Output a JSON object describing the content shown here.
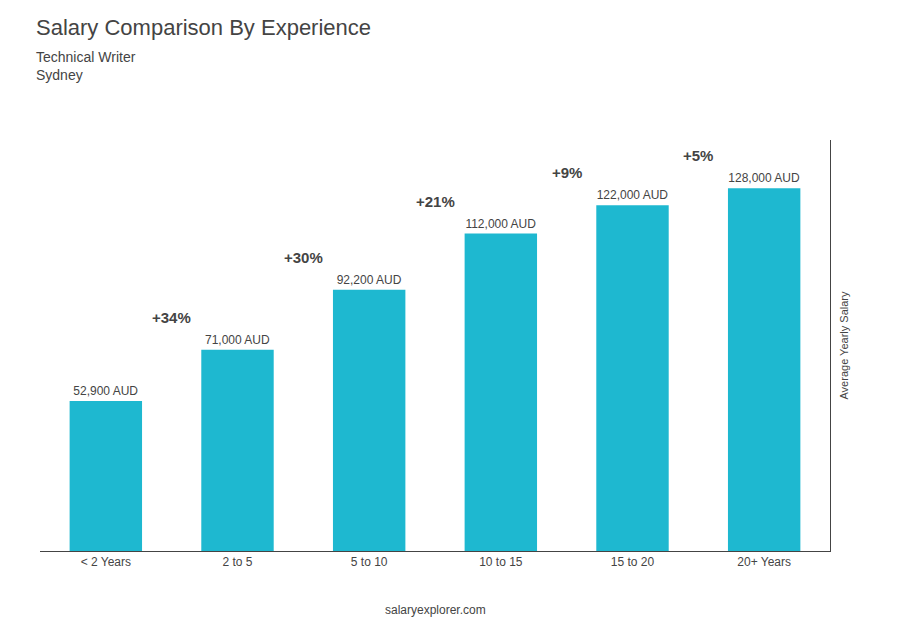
{
  "chart_data": {
    "type": "bar",
    "title": "Salary Comparison By Experience",
    "subtitle": [
      "Technical Writer",
      "Sydney"
    ],
    "ylabel": "Average Yearly Salary",
    "categories": [
      "< 2 Years",
      "2 to 5",
      "5 to 10",
      "10 to 15",
      "15 to 20",
      "20+ Years"
    ],
    "values": [
      52900,
      71000,
      92200,
      112000,
      122000,
      128000
    ],
    "value_labels": [
      "52,900 AUD",
      "71,000 AUD",
      "92,200 AUD",
      "112,000 AUD",
      "122,000 AUD",
      "128,000 AUD"
    ],
    "data_labels": true,
    "color": "#1eb8d0",
    "ylim": [
      0,
      145000
    ],
    "grid": false,
    "tick_labels": "x",
    "annotations": [
      {
        "text": "+34%",
        "from": "< 2 Years",
        "to": "2 to 5"
      },
      {
        "text": "+30%",
        "from": "2 to 5",
        "to": "5 to 10"
      },
      {
        "text": "+21%",
        "from": "5 to 10",
        "to": "10 to 15"
      },
      {
        "text": "+9%",
        "from": "10 to 15",
        "to": "15 to 20"
      },
      {
        "text": "+5%",
        "from": "15 to 20",
        "to": "20+ Years"
      },
      {
        "text": "salaryexplorer.com"
      }
    ]
  }
}
